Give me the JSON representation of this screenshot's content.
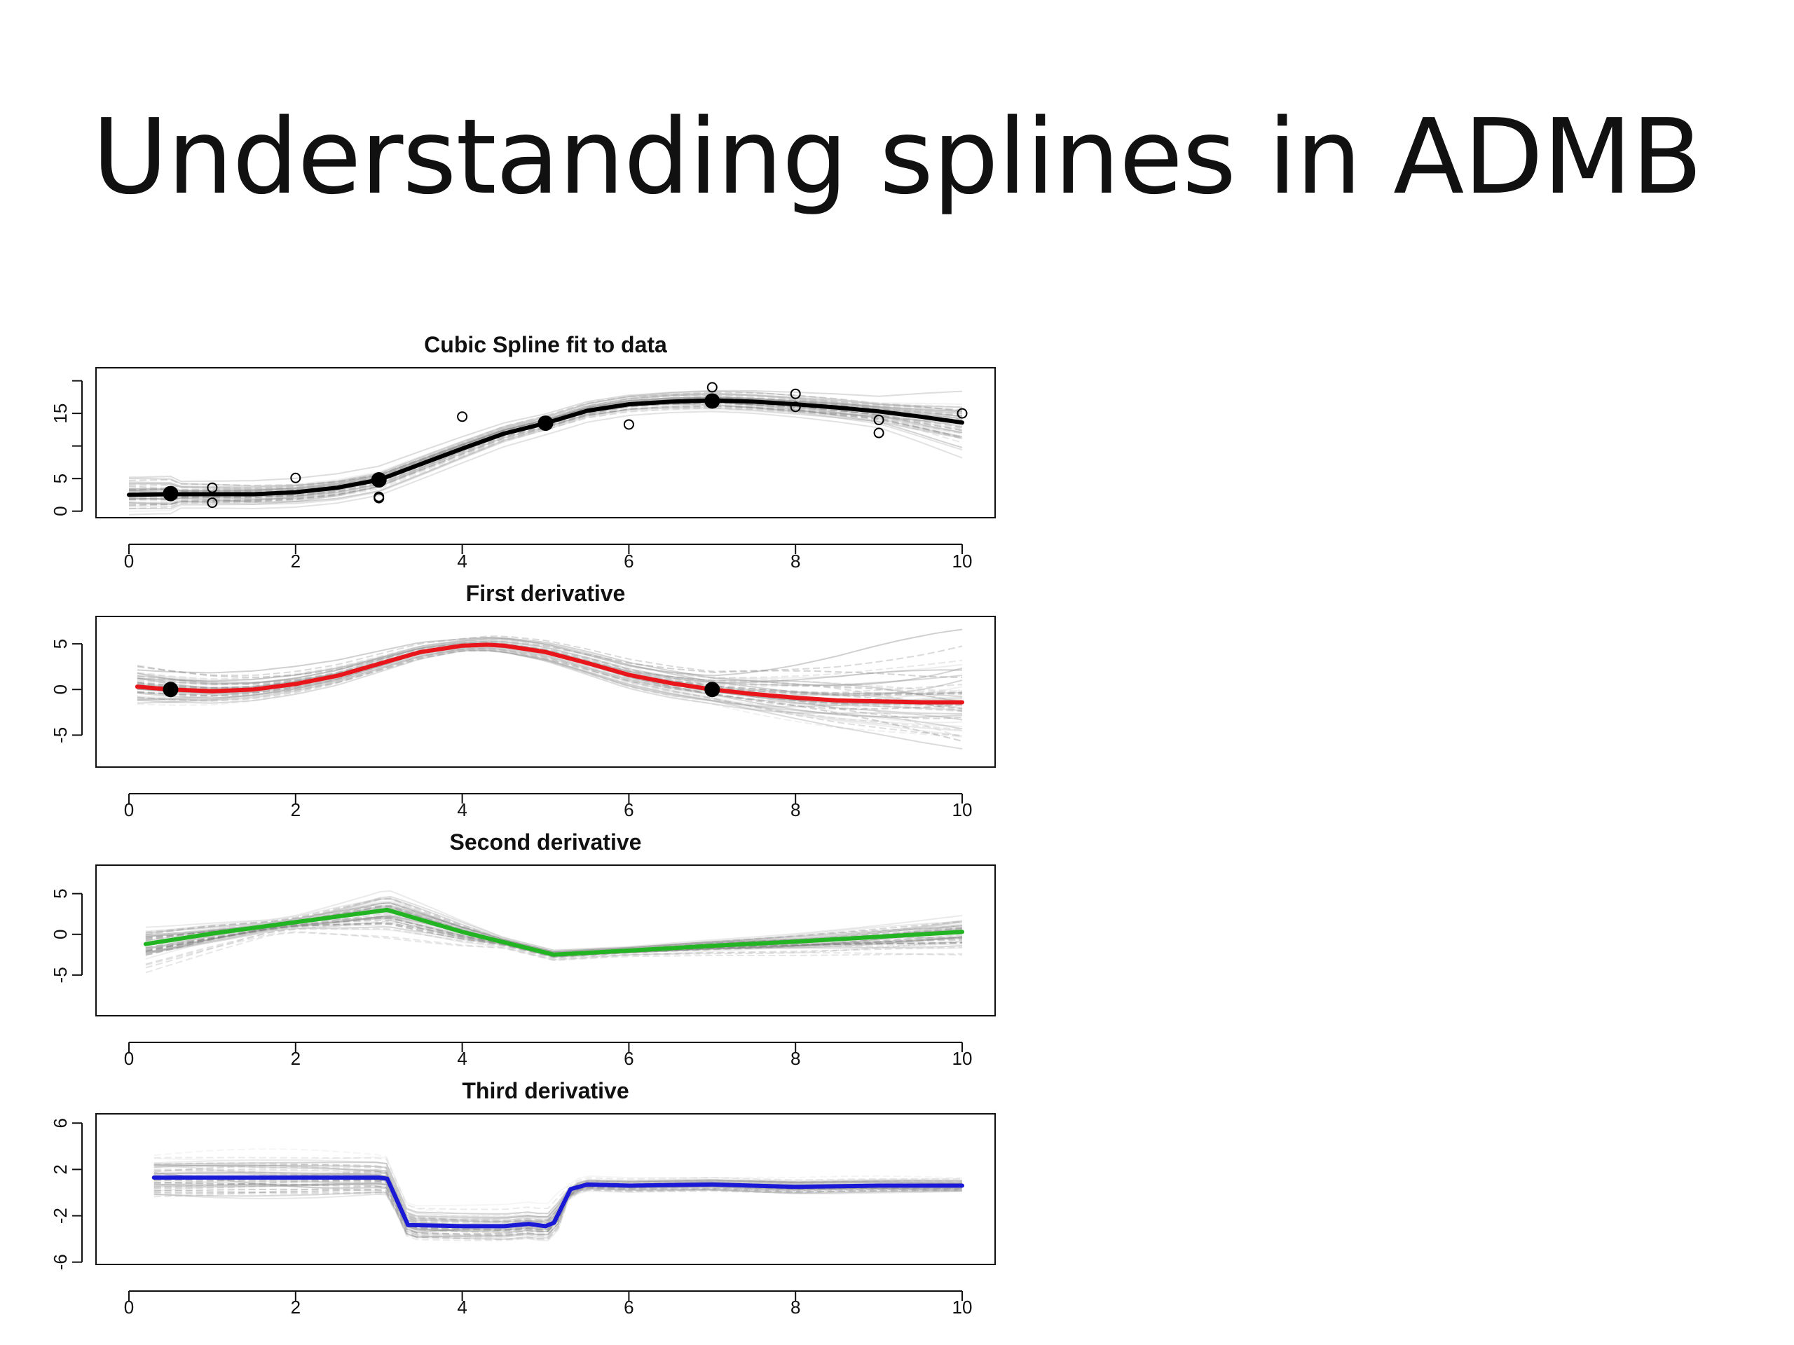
{
  "slide": {
    "title": "Understanding splines in ADMB"
  },
  "colors": {
    "ensemble": "#9a9a9a",
    "data": "#000000",
    "first": "#e8161b",
    "second": "#22b422",
    "third": "#1a1ad6"
  },
  "chart_data": [
    {
      "type": "line",
      "title": "Cubic Spline fit to data",
      "xlim": [
        0,
        10
      ],
      "ylim": [
        -1,
        22
      ],
      "xticks": [
        0,
        2,
        4,
        6,
        8,
        10
      ],
      "yticks": [
        0,
        5,
        15
      ],
      "main_color": "#000000",
      "main_line": {
        "x": [
          0,
          0.5,
          1,
          1.5,
          2,
          2.5,
          3,
          3.5,
          4,
          4.5,
          5,
          5.5,
          6,
          6.5,
          7,
          7.5,
          8,
          8.5,
          9,
          9.5,
          10
        ],
        "y": [
          2.5,
          2.6,
          2.6,
          2.6,
          2.9,
          3.6,
          4.8,
          7.2,
          9.6,
          11.9,
          13.5,
          15.4,
          16.4,
          16.8,
          17.0,
          16.8,
          16.4,
          15.9,
          15.3,
          14.5,
          13.6
        ]
      },
      "knots": {
        "x": [
          0.5,
          3,
          5,
          7
        ],
        "y": [
          2.7,
          4.8,
          13.5,
          16.9
        ]
      },
      "observations": {
        "x": [
          1,
          1,
          2,
          3,
          3,
          4,
          6,
          7,
          8,
          8,
          9,
          9,
          10
        ],
        "y": [
          3.6,
          1.3,
          5.1,
          2.0,
          2.2,
          14.5,
          13.3,
          19.0,
          18.0,
          16.0,
          14.0,
          12.0,
          15.0
        ]
      }
    },
    {
      "type": "line",
      "title": "First derivative",
      "xlim": [
        0,
        10
      ],
      "ylim": [
        -8.5,
        8
      ],
      "xticks": [
        0,
        2,
        4,
        6,
        8,
        10
      ],
      "yticks": [
        5,
        0,
        -5
      ],
      "main_color": "#e8161b",
      "main_line": {
        "x": [
          0.1,
          0.5,
          1,
          1.5,
          2,
          2.5,
          3,
          3.5,
          4,
          4.3,
          4.5,
          5,
          5.5,
          6,
          6.5,
          7,
          7.5,
          8,
          8.5,
          9,
          9.5,
          10
        ],
        "y": [
          0.3,
          0.0,
          -0.2,
          0.0,
          0.6,
          1.5,
          2.8,
          4.1,
          4.8,
          4.9,
          4.8,
          4.1,
          2.9,
          1.6,
          0.7,
          0.0,
          -0.5,
          -0.9,
          -1.2,
          -1.3,
          -1.4,
          -1.4
        ]
      },
      "knots": {
        "x": [
          0.5,
          7
        ],
        "y": [
          0,
          0
        ]
      }
    },
    {
      "type": "line",
      "title": "Second derivative",
      "xlim": [
        0,
        10
      ],
      "ylim": [
        -10,
        8.5
      ],
      "xticks": [
        0,
        2,
        4,
        6,
        8,
        10
      ],
      "yticks": [
        5,
        0,
        -5
      ],
      "main_color": "#22b422",
      "main_line": {
        "x": [
          0.2,
          1,
          2,
          3.1,
          4,
          5.1,
          6,
          7,
          8,
          9,
          10
        ],
        "y": [
          -1.2,
          0.1,
          1.5,
          3.0,
          0.3,
          -2.5,
          -2.0,
          -1.4,
          -0.9,
          -0.3,
          0.3
        ]
      }
    },
    {
      "type": "line",
      "title": "Third derivative",
      "xlim": [
        0,
        10
      ],
      "ylim": [
        -6.2,
        6.8
      ],
      "xticks": [
        0,
        2,
        4,
        6,
        8,
        10
      ],
      "yticks": [
        6,
        2,
        -2,
        -6
      ],
      "main_color": "#1a1ad6",
      "main_line": {
        "x": [
          0.3,
          1,
          2,
          3,
          3.1,
          3.35,
          4,
          4.5,
          4.8,
          4.9,
          5.0,
          5.1,
          5.3,
          5.5,
          6,
          7,
          8,
          9,
          10
        ],
        "y": [
          1.3,
          1.3,
          1.3,
          1.3,
          1.2,
          -2.8,
          -2.9,
          -2.9,
          -2.7,
          -2.8,
          -2.9,
          -2.6,
          0.3,
          0.7,
          0.6,
          0.7,
          0.5,
          0.6,
          0.6
        ]
      }
    }
  ]
}
